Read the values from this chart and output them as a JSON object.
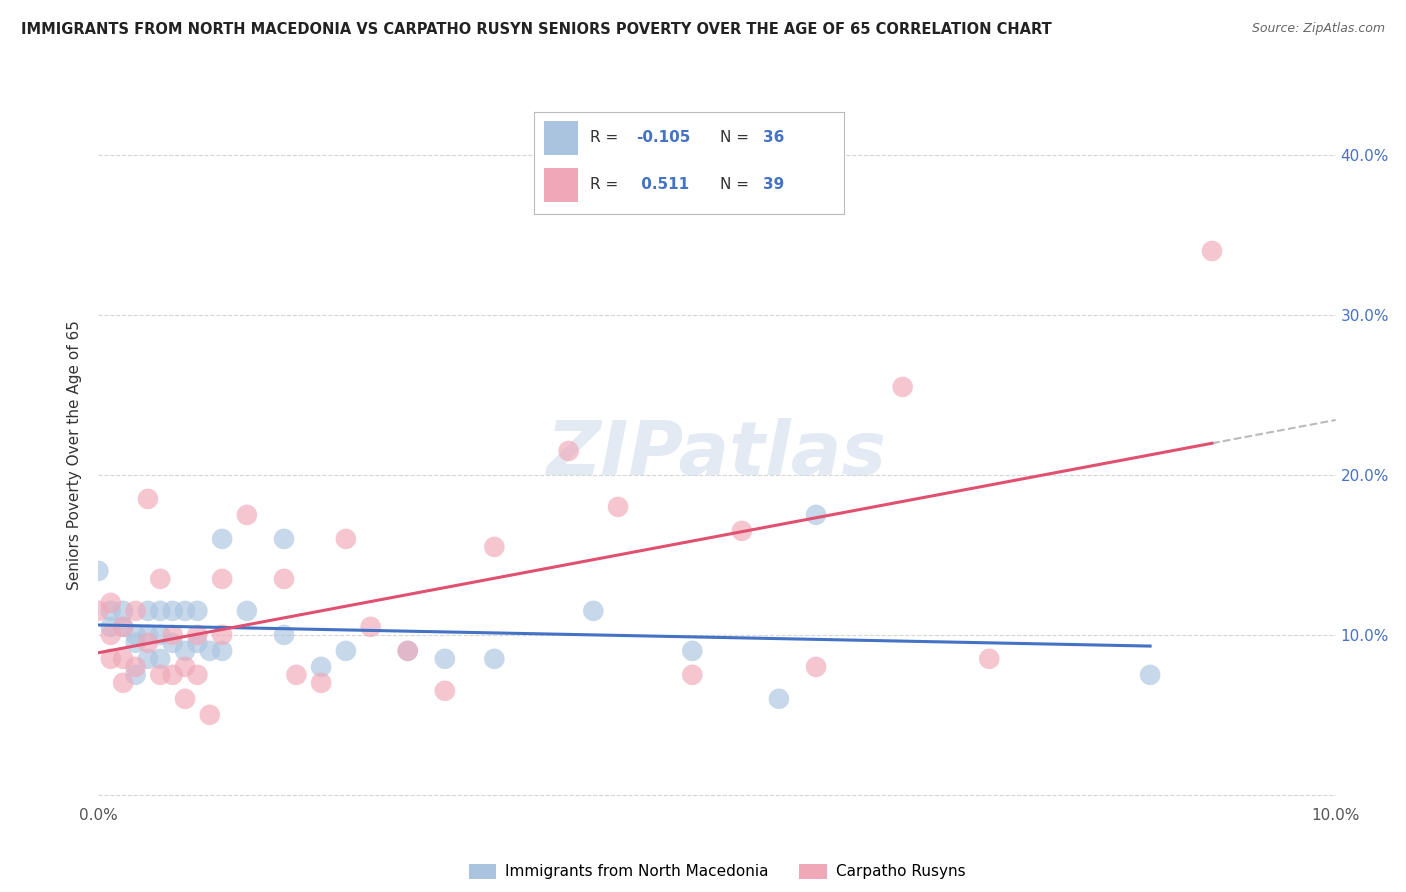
{
  "title": "IMMIGRANTS FROM NORTH MACEDONIA VS CARPATHO RUSYN SENIORS POVERTY OVER THE AGE OF 65 CORRELATION CHART",
  "source": "Source: ZipAtlas.com",
  "ylabel": "Seniors Poverty Over the Age of 65",
  "xlim": [
    0.0,
    0.1
  ],
  "ylim": [
    -0.005,
    0.43
  ],
  "x_ticks": [
    0.0,
    0.02,
    0.04,
    0.06,
    0.08,
    0.1
  ],
  "x_tick_labels": [
    "0.0%",
    "",
    "",
    "",
    "",
    "10.0%"
  ],
  "y_ticks": [
    0.0,
    0.1,
    0.2,
    0.3,
    0.4
  ],
  "y_right_labels": [
    "",
    "10.0%",
    "20.0%",
    "30.0%",
    "40.0%"
  ],
  "series1_label": "Immigrants from North Macedonia",
  "series2_label": "Carpatho Rusyns",
  "series1_color": "#aac4e0",
  "series2_color": "#f0a8b8",
  "series1_line_color": "#4472c4",
  "series2_line_color": "#e05070",
  "series1_R": -0.105,
  "series1_N": 36,
  "series2_R": 0.511,
  "series2_N": 39,
  "background_color": "#ffffff",
  "grid_color": "#cccccc",
  "series1_x": [
    0.0,
    0.001,
    0.001,
    0.002,
    0.002,
    0.003,
    0.003,
    0.003,
    0.004,
    0.004,
    0.004,
    0.005,
    0.005,
    0.005,
    0.006,
    0.006,
    0.007,
    0.007,
    0.008,
    0.008,
    0.009,
    0.01,
    0.01,
    0.012,
    0.015,
    0.015,
    0.018,
    0.02,
    0.025,
    0.028,
    0.032,
    0.04,
    0.048,
    0.055,
    0.058,
    0.085
  ],
  "series1_y": [
    0.14,
    0.115,
    0.105,
    0.115,
    0.105,
    0.1,
    0.095,
    0.075,
    0.115,
    0.1,
    0.085,
    0.115,
    0.1,
    0.085,
    0.115,
    0.095,
    0.115,
    0.09,
    0.115,
    0.095,
    0.09,
    0.16,
    0.09,
    0.115,
    0.16,
    0.1,
    0.08,
    0.09,
    0.09,
    0.085,
    0.085,
    0.115,
    0.09,
    0.06,
    0.175,
    0.075
  ],
  "series2_x": [
    0.0,
    0.001,
    0.001,
    0.001,
    0.002,
    0.002,
    0.002,
    0.003,
    0.003,
    0.004,
    0.004,
    0.005,
    0.005,
    0.006,
    0.006,
    0.007,
    0.007,
    0.008,
    0.008,
    0.009,
    0.01,
    0.01,
    0.012,
    0.015,
    0.016,
    0.018,
    0.02,
    0.022,
    0.025,
    0.028,
    0.032,
    0.038,
    0.042,
    0.048,
    0.052,
    0.058,
    0.065,
    0.072,
    0.09
  ],
  "series2_y": [
    0.115,
    0.12,
    0.1,
    0.085,
    0.105,
    0.085,
    0.07,
    0.115,
    0.08,
    0.185,
    0.095,
    0.135,
    0.075,
    0.1,
    0.075,
    0.08,
    0.06,
    0.1,
    0.075,
    0.05,
    0.135,
    0.1,
    0.175,
    0.135,
    0.075,
    0.07,
    0.16,
    0.105,
    0.09,
    0.065,
    0.155,
    0.215,
    0.18,
    0.075,
    0.165,
    0.08,
    0.255,
    0.085,
    0.34
  ]
}
